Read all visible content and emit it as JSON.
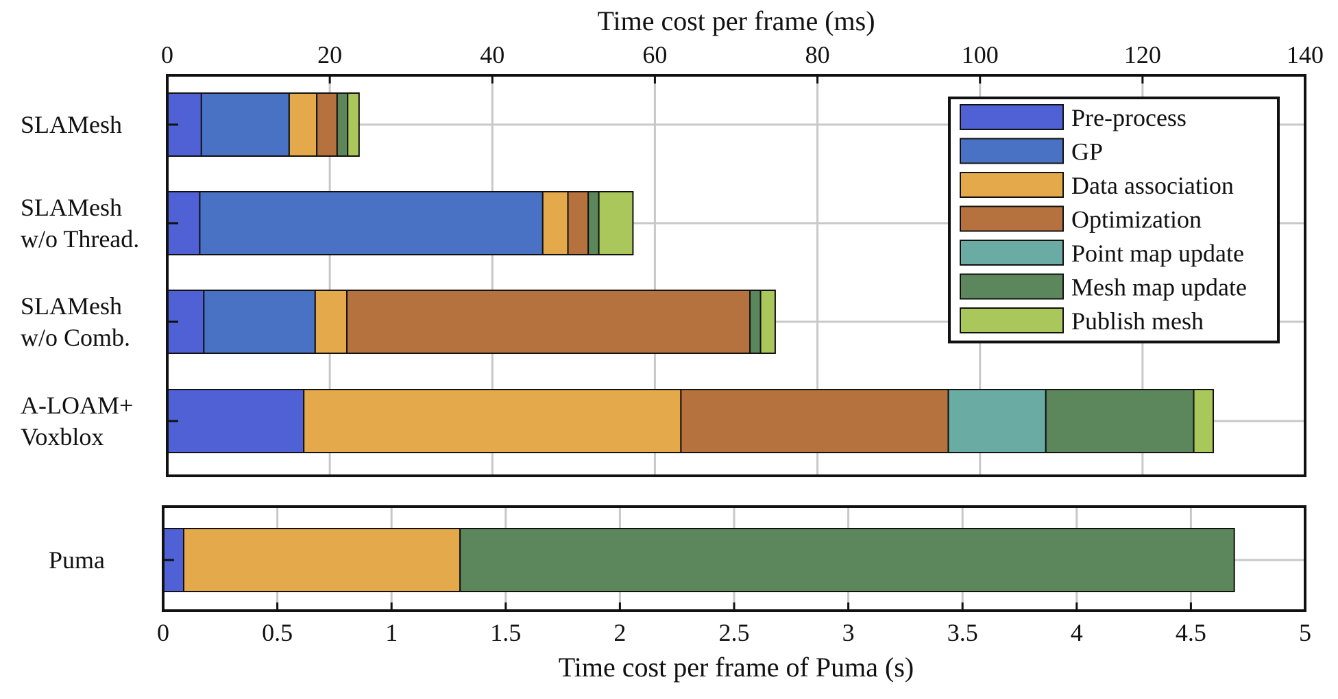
{
  "chart_data": [
    {
      "type": "bar",
      "orientation": "horizontal",
      "stacked": true,
      "title": "",
      "xlabel": "Time cost per frame (ms)",
      "xlabel_position": "top",
      "xlim": [
        0,
        140
      ],
      "xticks": [
        0,
        20,
        40,
        60,
        80,
        100,
        120,
        140
      ],
      "grid": true,
      "categories": [
        [
          "SLAMesh"
        ],
        [
          "SLAMesh",
          "w/o Thread."
        ],
        [
          "SLAMesh",
          "w/o Comb."
        ],
        [
          "A-LOAM+",
          "Voxblox"
        ]
      ],
      "series": [
        {
          "name": "Pre-process",
          "color": "#5061d6",
          "values": [
            4.2,
            4.0,
            4.5,
            16.8
          ]
        },
        {
          "name": "GP",
          "color": "#4a72c4",
          "values": [
            10.8,
            42.2,
            13.7,
            0
          ]
        },
        {
          "name": "Data association",
          "color": "#e4a94b",
          "values": [
            3.4,
            3.1,
            3.9,
            46.4
          ]
        },
        {
          "name": "Optimization",
          "color": "#b5723e",
          "values": [
            2.5,
            2.5,
            49.6,
            32.9
          ]
        },
        {
          "name": "Point map update",
          "color": "#6aaba4",
          "values": [
            0,
            0,
            0,
            12.0
          ]
        },
        {
          "name": "Mesh map update",
          "color": "#5c875c",
          "values": [
            1.3,
            1.3,
            1.3,
            18.2
          ]
        },
        {
          "name": "Publish mesh",
          "color": "#a9c75a",
          "values": [
            1.4,
            4.2,
            1.8,
            2.4
          ]
        }
      ],
      "legend": {
        "placement": "top-right",
        "entries": [
          "Pre-process",
          "GP",
          "Data association",
          "Optimization",
          "Point map update",
          "Mesh map update",
          "Publish mesh"
        ]
      }
    },
    {
      "type": "bar",
      "orientation": "horizontal",
      "stacked": true,
      "title": "",
      "xlabel": "Time cost per frame of Puma (s)",
      "xlabel_position": "bottom",
      "xlim": [
        0,
        5
      ],
      "xticks": [
        0,
        0.5,
        1,
        1.5,
        2,
        2.5,
        3,
        3.5,
        4,
        4.5,
        5
      ],
      "grid": true,
      "categories": [
        [
          "Puma"
        ]
      ],
      "series": [
        {
          "name": "Pre-process",
          "color": "#5061d6",
          "values": [
            0.09
          ]
        },
        {
          "name": "Data association",
          "color": "#e4a94b",
          "values": [
            1.21
          ]
        },
        {
          "name": "Mesh map update",
          "color": "#5c875c",
          "values": [
            3.39
          ]
        }
      ]
    }
  ]
}
